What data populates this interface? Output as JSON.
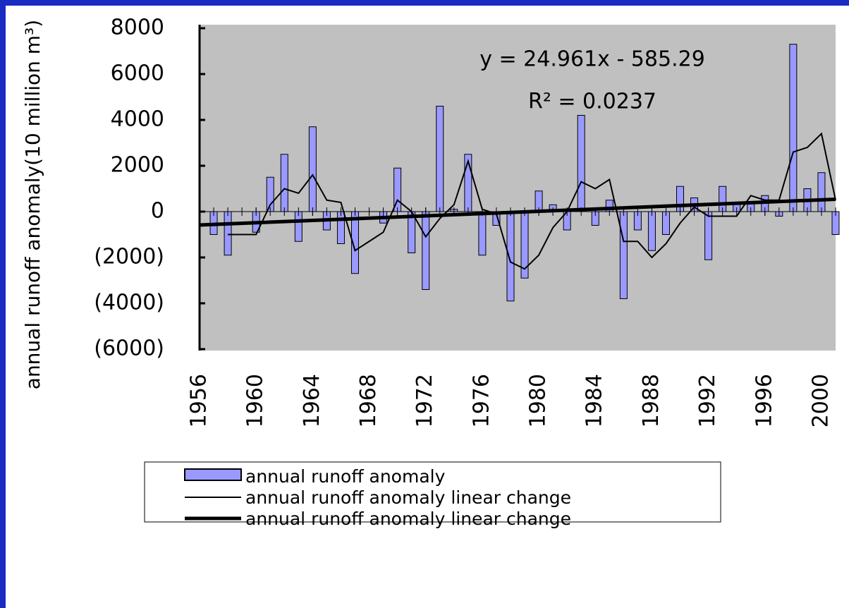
{
  "chart_data": {
    "type": "bar",
    "ylabel": "annual runoff anomaly(10 million m³)",
    "annotations": [
      "y = 24.961x - 585.29",
      "R² = 0.0237"
    ],
    "xlim": [
      1956,
      2001
    ],
    "xticks": [
      1956,
      1960,
      1964,
      1968,
      1972,
      1976,
      1980,
      1984,
      1988,
      1992,
      1996,
      2000
    ],
    "ylim": [
      -6000,
      8000
    ],
    "yticks": [
      {
        "value": -6000,
        "label": "(6000)"
      },
      {
        "value": -4000,
        "label": "(4000)"
      },
      {
        "value": -2000,
        "label": "(2000)"
      },
      0,
      2000,
      4000,
      6000,
      8000
    ],
    "negative_tick_color": "#ff0000",
    "series": [
      {
        "name": "annual runoff anomaly",
        "type": "bar",
        "color": "#9999ff",
        "x": [
          1957,
          1958,
          1959,
          1960,
          1961,
          1962,
          1963,
          1964,
          1965,
          1966,
          1967,
          1968,
          1969,
          1970,
          1971,
          1972,
          1973,
          1974,
          1975,
          1976,
          1977,
          1978,
          1979,
          1980,
          1981,
          1982,
          1983,
          1984,
          1985,
          1986,
          1987,
          1988,
          1989,
          1990,
          1991,
          1992,
          1993,
          1994,
          1995,
          1996,
          1997,
          1998,
          1999,
          2000,
          2001
        ],
        "values": [
          -1000,
          -1900,
          0,
          -900,
          1500,
          2500,
          -1300,
          3700,
          -800,
          -1400,
          -2700,
          0,
          -500,
          1900,
          -1800,
          -3400,
          4600,
          100,
          2500,
          -1900,
          -600,
          -3900,
          -2900,
          900,
          300,
          -800,
          4200,
          -600,
          500,
          -3800,
          -800,
          -1700,
          -1000,
          1100,
          600,
          -2100,
          1100,
          400,
          400,
          700,
          -200,
          7300,
          1000,
          1700,
          -1000
        ]
      },
      {
        "name": "annual runoff anomaly linear change",
        "type": "line",
        "color": "#000000",
        "width": 2,
        "x": [
          1958,
          1959,
          1960,
          1961,
          1962,
          1963,
          1964,
          1965,
          1966,
          1967,
          1968,
          1969,
          1970,
          1971,
          1972,
          1973,
          1974,
          1975,
          1976,
          1977,
          1978,
          1979,
          1980,
          1981,
          1982,
          1983,
          1984,
          1985,
          1986,
          1987,
          1988,
          1989,
          1990,
          1991,
          1992,
          1993,
          1994,
          1995,
          1996,
          1997,
          1998,
          1999,
          2000,
          2001
        ],
        "values": [
          -1000,
          -1000,
          -1000,
          300,
          1000,
          800,
          1600,
          500,
          400,
          -1700,
          -1300,
          -900,
          500,
          0,
          -1100,
          -300,
          300,
          2200,
          100,
          -100,
          -2200,
          -2500,
          -1900,
          -700,
          0,
          1300,
          1000,
          1400,
          -1300,
          -1300,
          -2000,
          -1400,
          -500,
          200,
          -200,
          -200,
          -200,
          700,
          500,
          500,
          2600,
          2800,
          3400,
          500
        ]
      },
      {
        "name": "annual runoff anomaly linear change",
        "type": "line",
        "color": "#000000",
        "width": 5,
        "x": [
          1956,
          2001
        ],
        "values": [
          -585,
          538
        ]
      }
    ]
  }
}
